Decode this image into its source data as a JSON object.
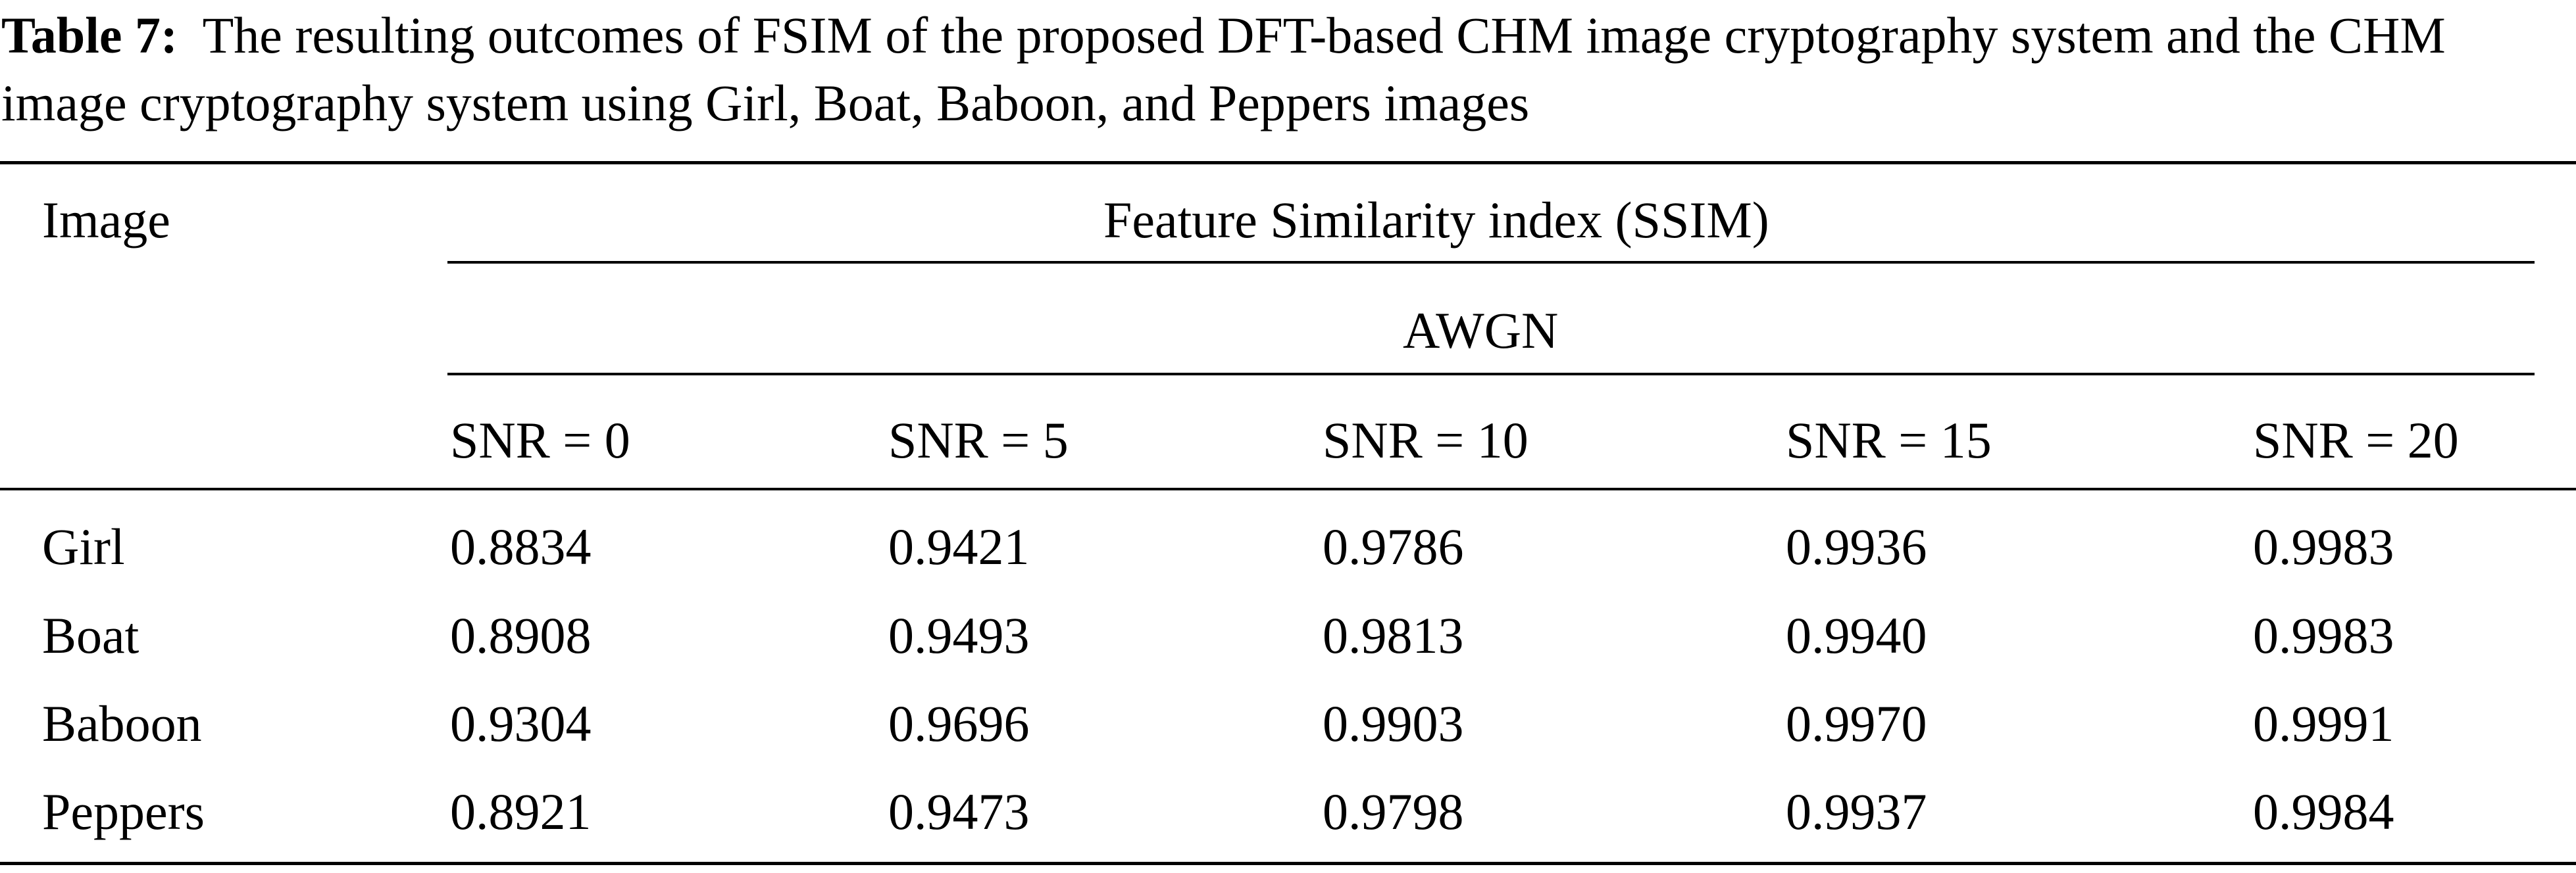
{
  "caption": {
    "label": "Table 7:",
    "text": "The resulting outcomes of FSIM of the proposed DFT-based CHM image cryptography system and the CHM image cryptography system using Girl, Boat, Baboon, and Peppers images"
  },
  "table": {
    "row_header": "Image",
    "group_header": "Feature Similarity index (SSIM)",
    "subgroup_header": "AWGN",
    "columns": [
      "SNR = 0",
      "SNR = 5",
      "SNR = 10",
      "SNR = 15",
      "SNR = 20"
    ],
    "rows": [
      {
        "name": "Girl",
        "values": [
          "0.8834",
          "0.9421",
          "0.9786",
          "0.9936",
          "0.9983"
        ]
      },
      {
        "name": "Boat",
        "values": [
          "0.8908",
          "0.9493",
          "0.9813",
          "0.9940",
          "0.9983"
        ]
      },
      {
        "name": "Baboon",
        "values": [
          "0.9304",
          "0.9696",
          "0.9903",
          "0.9970",
          "0.9991"
        ]
      },
      {
        "name": "Peppers",
        "values": [
          "0.8921",
          "0.9473",
          "0.9798",
          "0.9937",
          "0.9984"
        ]
      }
    ]
  }
}
